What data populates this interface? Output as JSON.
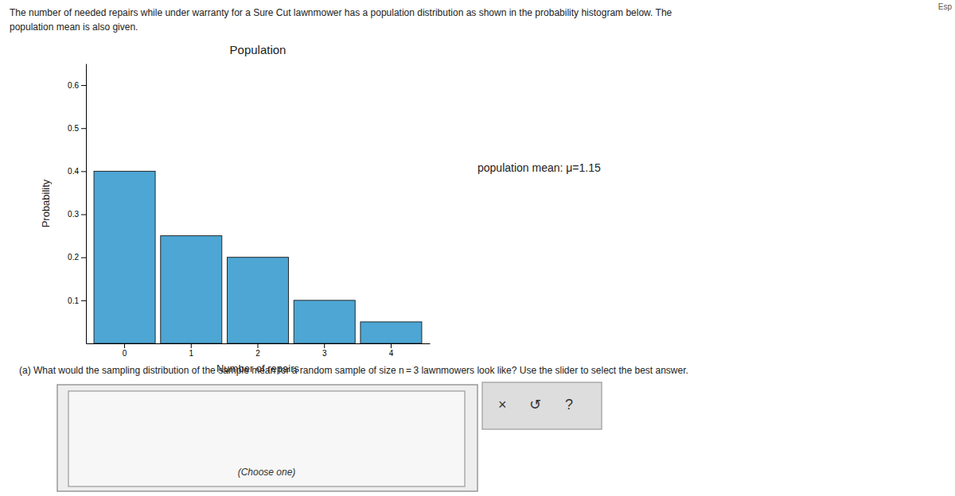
{
  "chart_data": {
    "type": "bar",
    "title": "Population",
    "x_label": "Number of repairs",
    "y_label": "Probability",
    "categories": [
      0,
      1,
      2,
      3,
      4
    ],
    "values": [
      0.4,
      0.25,
      0.2,
      0.1,
      0.05
    ],
    "color": "#4da6d4",
    "ylim": [
      0,
      0.65
    ],
    "yticks": [
      0.1,
      0.2,
      0.3,
      0.4,
      0.5,
      0.6
    ],
    "annotations": [
      "The number of needed repairs while under warranty for a Sure Cut lawnmower has a population distribution as shown in the probability histogram below. The",
      "population mean is also given.",
      "population mean: μ=1.15",
      "(a) What would the sampling distribution of the sample mean for a random sample of size n = 3 lawnmowers look like? Use the slider to select the best answer.",
      "(Choose one)",
      "×",
      "↺",
      "?",
      "Esp"
    ]
  }
}
